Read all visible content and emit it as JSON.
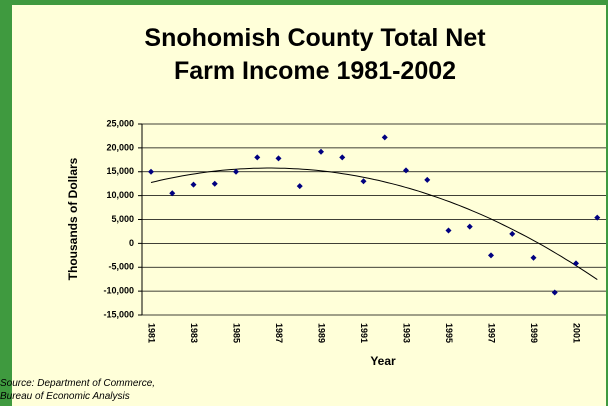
{
  "chart_data": {
    "type": "scatter",
    "title": "Snohomish County Total Net Farm Income 1981-2002",
    "source": "Source: Department of Commerce, Bureau of Economic Analysis",
    "x_label": "Year",
    "y_label": "Thousands of Dollars",
    "categories": [
      "1981",
      null,
      "1983",
      null,
      "1985",
      null,
      "1987",
      null,
      "1989",
      null,
      "1991",
      null,
      "1993",
      null,
      "1995",
      null,
      "1997",
      null,
      "1999",
      null,
      "2001",
      null
    ],
    "series": [
      {
        "color": "#000080",
        "values": [
          15000,
          10500,
          12300,
          12500,
          15000,
          18000,
          17800,
          12000,
          19200,
          18000,
          13000,
          22200,
          15300,
          13300,
          2700,
          3500,
          -2500,
          2000,
          -3000,
          -10300,
          -4200,
          5400
        ]
      }
    ],
    "trendline": "polynomial",
    "trendline_order": 2,
    "trendline_color": "#000000",
    "ylim": [
      -15000,
      25000
    ],
    "yticks": [
      {
        "value": -15000,
        "label": "-15,000"
      },
      {
        "value": -10000,
        "label": "-10,000"
      },
      {
        "value": -5000,
        "label": "-5,000"
      },
      0,
      {
        "value": 5000,
        "label": "5,000"
      },
      {
        "value": 10000,
        "label": "10,000"
      },
      {
        "value": 15000,
        "label": "15,000"
      },
      {
        "value": 20000,
        "label": "20,000"
      },
      {
        "value": 25000,
        "label": "25,000"
      }
    ],
    "grid": true
  }
}
